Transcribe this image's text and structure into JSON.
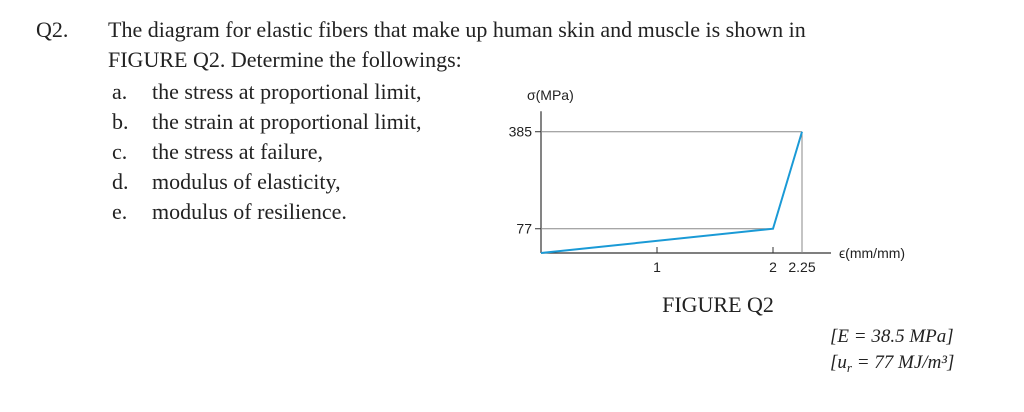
{
  "question": {
    "number": "Q2.",
    "lines": [
      "The diagram for elastic fibers that make up human skin and muscle is shown in",
      "FIGURE Q2. Determine the followings:"
    ],
    "items": [
      {
        "letter": "a.",
        "text": "the stress at proportional limit,"
      },
      {
        "letter": "b.",
        "text": "the strain at proportional limit,"
      },
      {
        "letter": "c.",
        "text": "the stress at failure,"
      },
      {
        "letter": "d.",
        "text": "modulus of elasticity,"
      },
      {
        "letter": "e.",
        "text": "modulus of resilience."
      }
    ],
    "caption": "FIGURE Q2",
    "answers": {
      "first": "[E = 38.5 MPa]",
      "second_pre": "[u",
      "second_sub": "r",
      "second_post": " = 77 MJ/m³]"
    }
  },
  "chart_data": {
    "type": "line",
    "y_label": "σ(MPa)",
    "x_label": "ϵ(mm/mm)",
    "x": [
      0,
      2,
      2.25
    ],
    "values": [
      0,
      77,
      385
    ],
    "color": "#1a9ad6",
    "xlim": [
      0,
      2.5
    ],
    "ylim": [
      0,
      450
    ],
    "xticks": [
      1,
      2,
      2.25
    ],
    "yticks": [
      77,
      385
    ]
  }
}
